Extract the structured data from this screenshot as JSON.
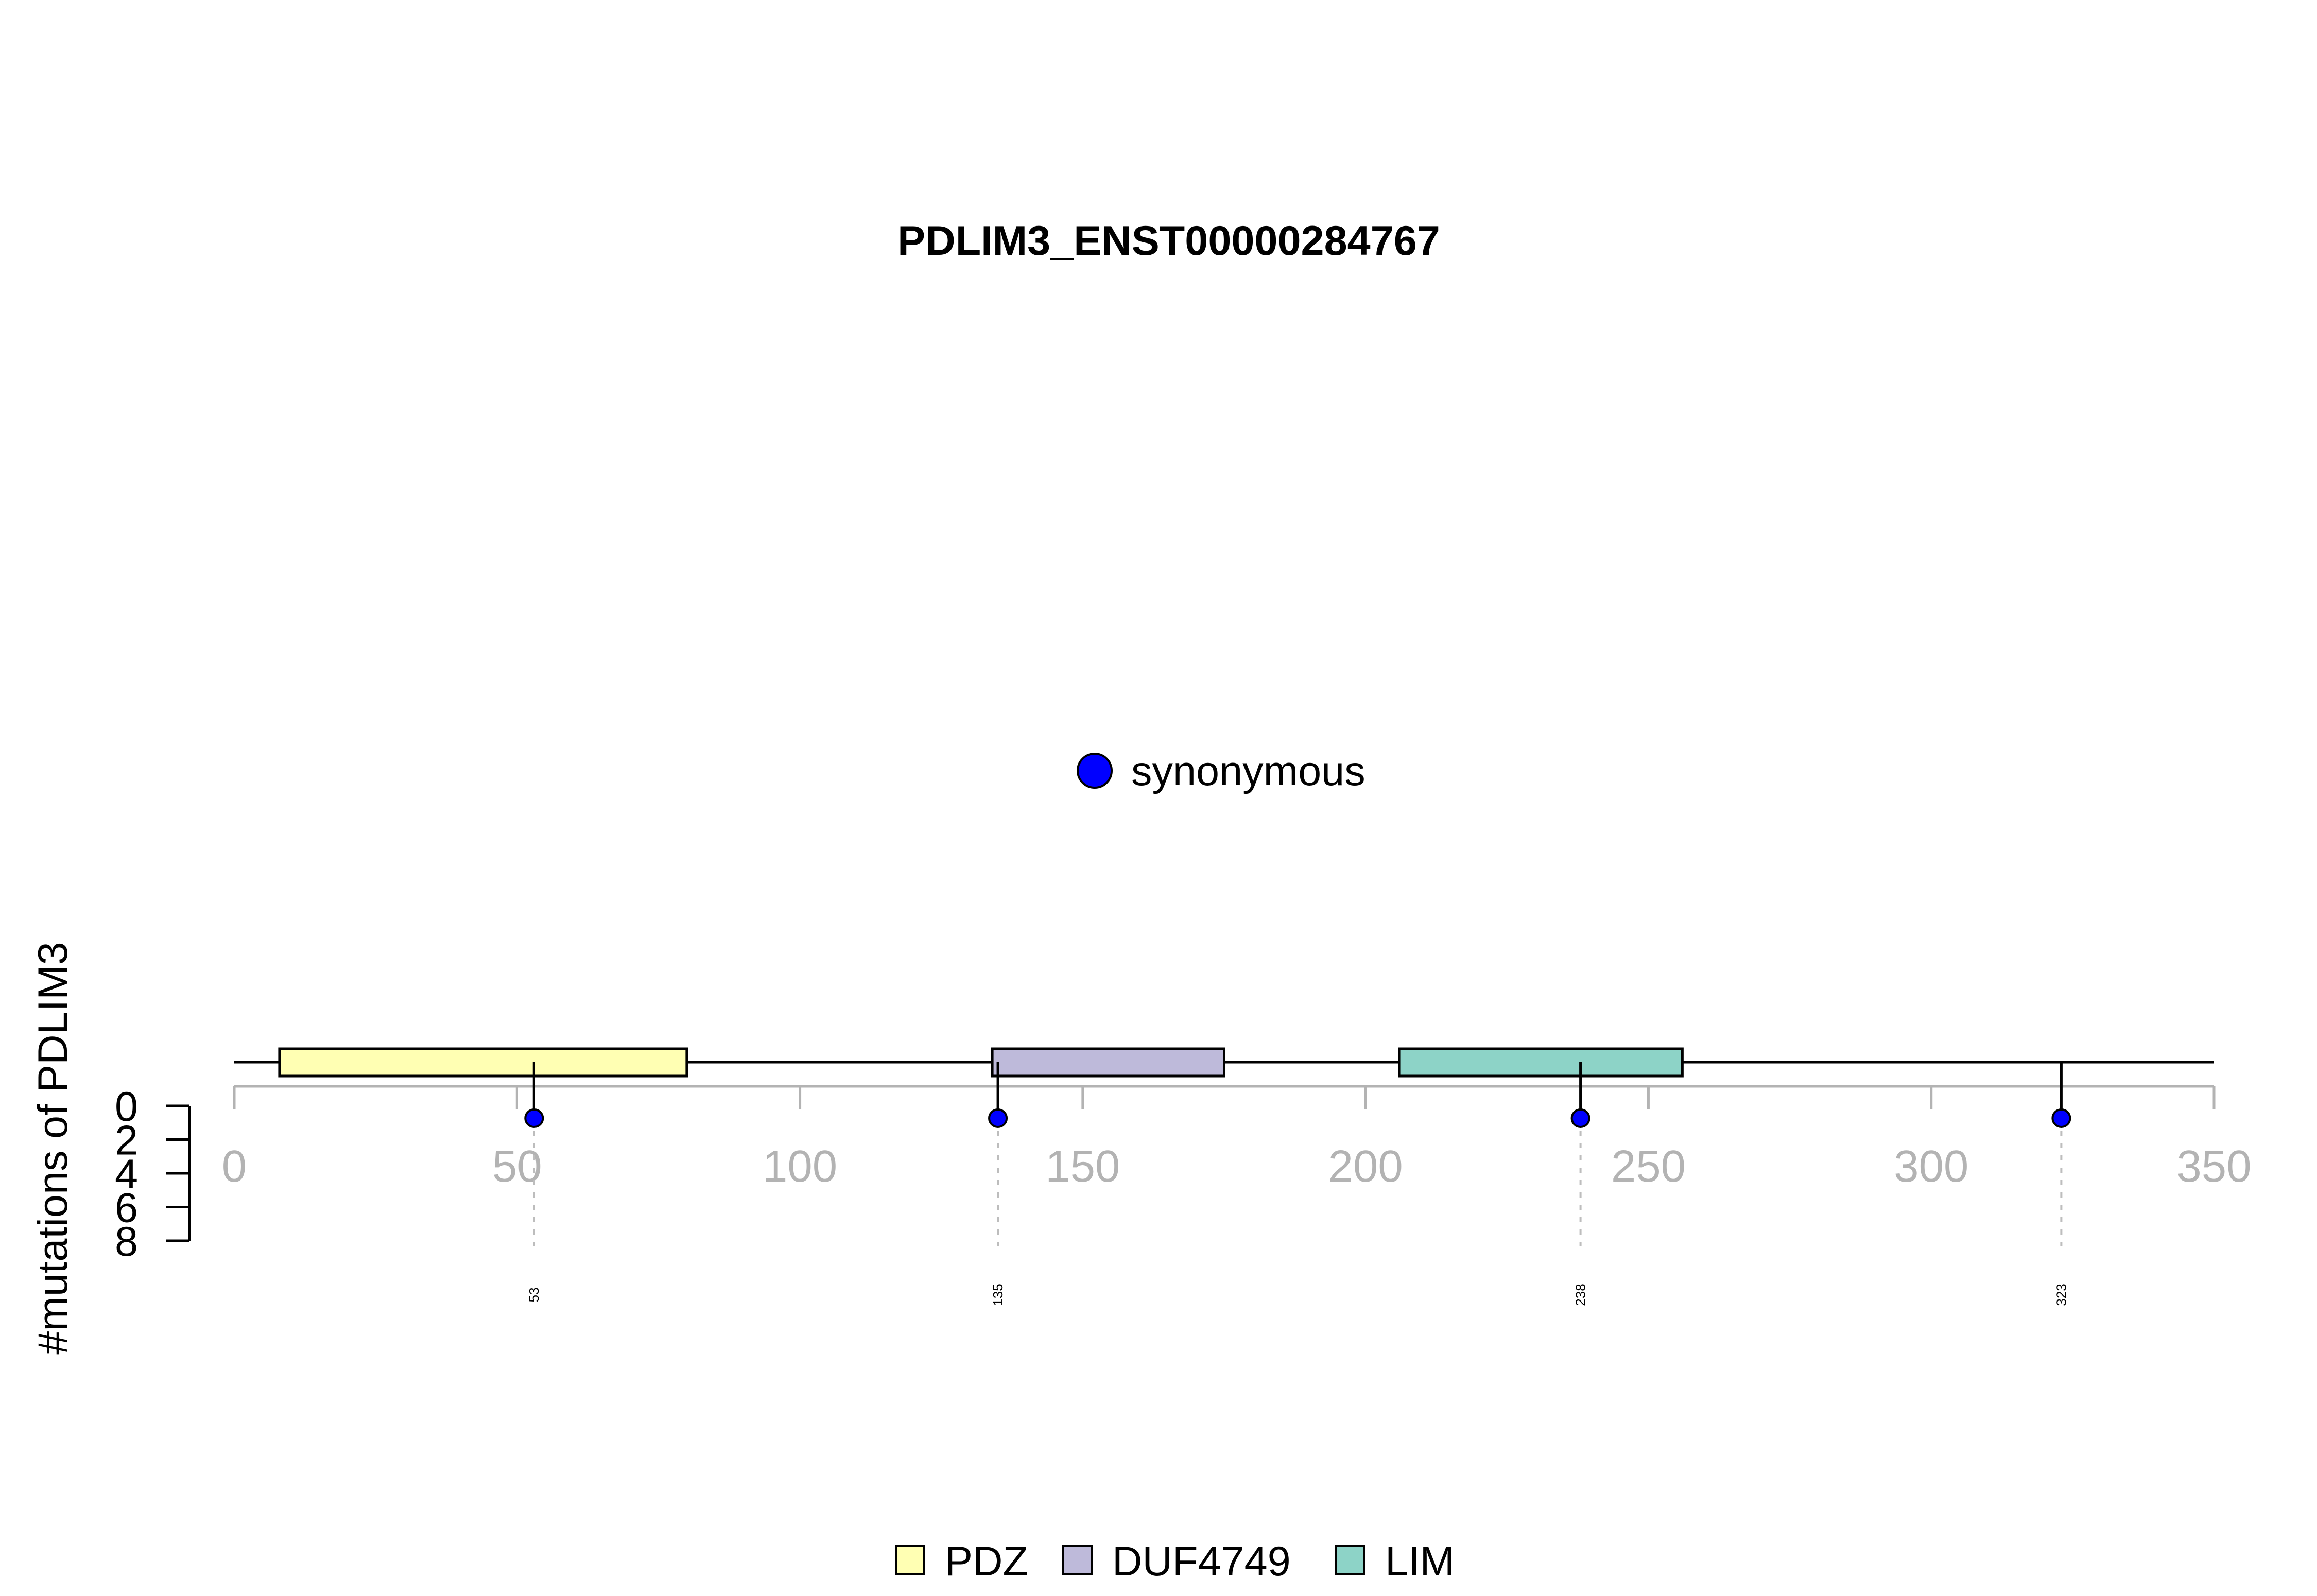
{
  "chart_data": {
    "type": "lollipop",
    "title": "PDLIM3_ENST00000284767",
    "ylabel": "#mutations of PDLIM3",
    "xlim": [
      0,
      350
    ],
    "x_ticks": [
      0,
      50,
      100,
      150,
      200,
      250,
      300,
      350
    ],
    "ylim": [
      0,
      8
    ],
    "y_ticks": [
      0,
      2,
      4,
      6,
      8
    ],
    "protein_length": 350,
    "domains": [
      {
        "name": "PDZ",
        "start": 8,
        "end": 80,
        "color": "#FFFFB3"
      },
      {
        "name": "DUF4749",
        "start": 134,
        "end": 175,
        "color": "#BEBADA"
      },
      {
        "name": "LIM",
        "start": 206,
        "end": 256,
        "color": "#8DD3C7"
      }
    ],
    "mutations": [
      {
        "position": 53,
        "count": 1,
        "type": "synonymous",
        "label": "53"
      },
      {
        "position": 135,
        "count": 1,
        "type": "synonymous",
        "label": "135"
      },
      {
        "position": 238,
        "count": 1,
        "type": "synonymous",
        "label": "238"
      },
      {
        "position": 323,
        "count": 1,
        "type": "synonymous",
        "label": "323"
      }
    ],
    "mutation_legend": [
      {
        "name": "synonymous",
        "color": "#0000FF"
      }
    ],
    "domain_legend": [
      {
        "name": "PDZ",
        "color": "#FFFFB3"
      },
      {
        "name": "DUF4749",
        "color": "#BEBADA"
      },
      {
        "name": "LIM",
        "color": "#8DD3C7"
      }
    ]
  }
}
